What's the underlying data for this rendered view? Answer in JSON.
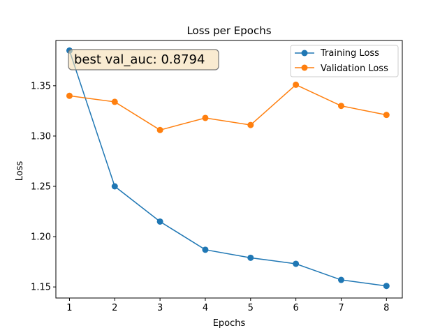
{
  "chart_data": {
    "type": "line",
    "title": "Loss per Epochs",
    "xlabel": "Epochs",
    "ylabel": "Loss",
    "x": [
      1,
      2,
      3,
      4,
      5,
      6,
      7,
      8
    ],
    "xlim": [
      0.7,
      8.35
    ],
    "ylim": [
      1.139,
      1.395
    ],
    "xticks": [
      1,
      2,
      3,
      4,
      5,
      6,
      7,
      8
    ],
    "yticks": [
      1.15,
      1.2,
      1.25,
      1.3,
      1.35
    ],
    "ytick_labels": [
      "1.15",
      "1.20",
      "1.25",
      "1.30",
      "1.35"
    ],
    "grid": false,
    "legend_position": "top-right",
    "series": [
      {
        "name": "Training Loss",
        "color": "#1f77b4",
        "marker": "circle",
        "values": [
          1.385,
          1.25,
          1.215,
          1.187,
          1.179,
          1.173,
          1.157,
          1.151
        ]
      },
      {
        "name": "Validation Loss",
        "color": "#ff7f0e",
        "marker": "circle",
        "values": [
          1.34,
          1.334,
          1.306,
          1.318,
          1.311,
          1.351,
          1.33,
          1.321
        ]
      }
    ],
    "annotations": [
      {
        "text": "best val_auc: 0.8794",
        "box_fill": "#f5deb3",
        "box_stroke": "#777777"
      }
    ]
  }
}
